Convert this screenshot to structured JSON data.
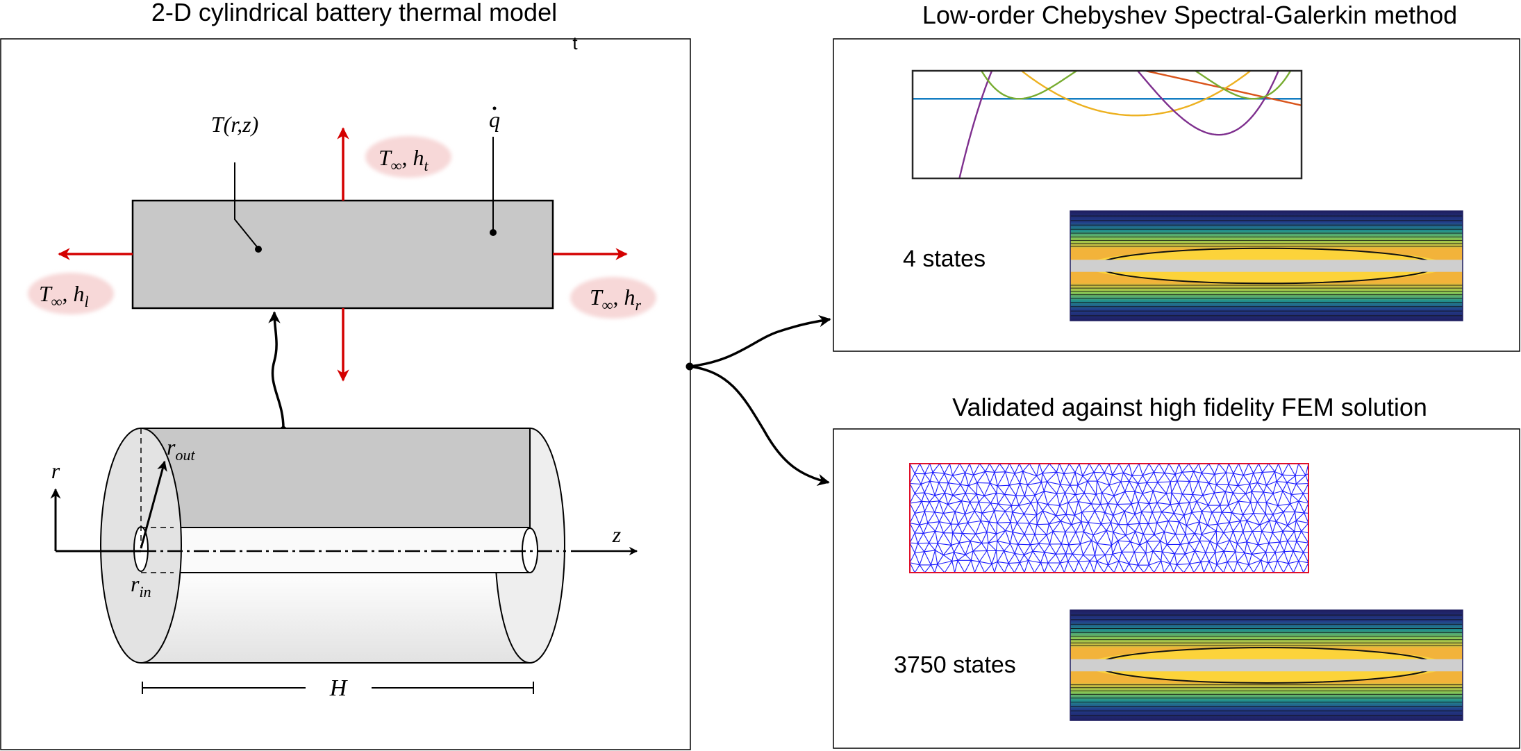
{
  "left_panel": {
    "title": "2-D cylindrical battery thermal model",
    "stray_mark": "t",
    "labels": {
      "temperature_field": "T(r,z)",
      "heat_source_q": "q",
      "top_boundary": {
        "T": "T",
        "inf": "∞",
        "sep": ", ",
        "h": "h",
        "sub": "t"
      },
      "left_boundary": {
        "T": "T",
        "inf": "∞",
        "sep": ", ",
        "h": "h",
        "sub": "l"
      },
      "right_boundary": {
        "T": "T",
        "inf": "∞",
        "sep": ", ",
        "h": "h",
        "sub": "r"
      },
      "r_axis": "r",
      "z_axis": "z",
      "r_out": {
        "base": "r",
        "sub": "out"
      },
      "r_in": {
        "base": "r",
        "sub": "in"
      },
      "height": "H"
    }
  },
  "top_right_panel": {
    "title": "Low-order Chebyshev Spectral-Galerkin method",
    "states_label": "4 states",
    "basis_colors": [
      "#0072BD",
      "#D95319",
      "#EDB120",
      "#7E2F8E",
      "#77AC30"
    ]
  },
  "bottom_right_panel": {
    "title": "Validated against high fidelity FEM solution",
    "states_label": "3750 states",
    "mesh_color": "#1a1aff",
    "mesh_border_color": "#e0102a"
  },
  "colors": {
    "boundary_arrow": "#d40000",
    "cell_gray": "#c8c8c8",
    "blob": "#f7d8d8",
    "colormap": [
      "#1f1e60",
      "#223c8a",
      "#1f6a8e",
      "#21908c",
      "#3bb273",
      "#8fc850",
      "#d9c43a",
      "#f2b33a",
      "#f7c839",
      "#fcd33a"
    ]
  }
}
